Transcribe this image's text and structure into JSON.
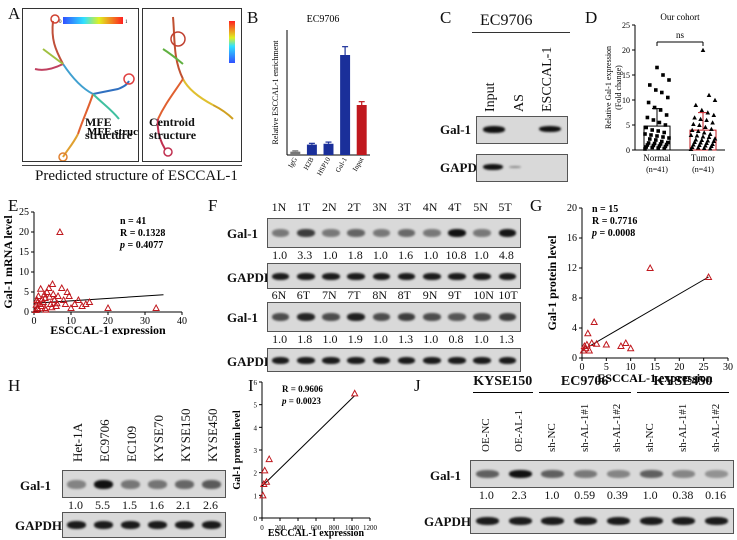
{
  "panels": {
    "A": {
      "label": "A",
      "mfe": "MFE structure",
      "centroid": "Centroid structure",
      "caption": "Predicted structure of ESCCAL-1",
      "scale_lo": "0",
      "scale_hi": "1"
    },
    "B": {
      "label": "B",
      "title": "EC9706",
      "ylabel": "Relative ESCCAL-1 enrichment"
    },
    "C": {
      "label": "C",
      "title": "EC9706",
      "lanes": [
        "Input",
        "AS",
        "ESCCAL-1"
      ],
      "rows": [
        "Gal-1",
        "GAPDH"
      ]
    },
    "D": {
      "label": "D",
      "title": "Our cohort",
      "ns": "ns",
      "ylabel": "Relative Gal-1 expression (Fold change)",
      "groups": [
        "Normal",
        "Tumor"
      ],
      "ns_counts": [
        "(n=41)",
        "(n=41)"
      ]
    },
    "E": {
      "label": "E",
      "ylabel": "Gal-1 mRNA level",
      "xlabel": "ESCCAL-1 expression",
      "stats": [
        "n = 41",
        "R = 0.1328",
        "p = 0.4077"
      ]
    },
    "F": {
      "label": "F",
      "lanes_top": [
        "1N",
        "1T",
        "2N",
        "2T",
        "3N",
        "3T",
        "4N",
        "4T",
        "5N",
        "5T"
      ],
      "vals_top": [
        "1.0",
        "3.3",
        "1.0",
        "1.8",
        "1.0",
        "1.6",
        "1.0",
        "10.8",
        "1.0",
        "4.8"
      ],
      "lanes_bot": [
        "6N",
        "6T",
        "7N",
        "7T",
        "8N",
        "8T",
        "9N",
        "9T",
        "10N",
        "10T"
      ],
      "vals_bot": [
        "1.0",
        "1.8",
        "1.0",
        "1.9",
        "1.0",
        "1.3",
        "1.0",
        "0.8",
        "1.0",
        "1.3"
      ],
      "rows": [
        "Gal-1",
        "GAPDH"
      ]
    },
    "G": {
      "label": "G",
      "ylabel": "Gal-1 protein level",
      "xlabel": "ESCCAL-1 expression",
      "stats": [
        "n = 15",
        "R = 0.7716",
        "p = 0.0008"
      ]
    },
    "H": {
      "label": "H",
      "lanes": [
        "Het-1A",
        "EC9706",
        "EC109",
        "KYSE70",
        "KYSE150",
        "KYSE450"
      ],
      "vals": [
        "1.0",
        "5.5",
        "1.5",
        "1.6",
        "2.1",
        "2.6"
      ],
      "rows": [
        "Gal-1",
        "GAPDH"
      ]
    },
    "I": {
      "label": "I",
      "ylabel": "Gal-1 protein level",
      "xlabel": "ESCCAL-1 expression",
      "stats": [
        "R = 0.9606",
        "p = 0.0023"
      ]
    },
    "J": {
      "label": "J",
      "groups": [
        "KYSE150",
        "EC9706",
        "KYSE450"
      ],
      "lanes": [
        "OE-NC",
        "OE-AL-1",
        "sh-NC",
        "sh-AL-1#1",
        "sh-AL-1#2",
        "sh-NC",
        "sh-AL-1#1",
        "sh-AL-1#2"
      ],
      "vals": [
        "1.0",
        "2.3",
        "1.0",
        "0.59",
        "0.39",
        "1.0",
        "0.38",
        "0.16"
      ],
      "rows": [
        "Gal-1",
        "GAPDH"
      ]
    }
  },
  "chart_data": [
    {
      "type": "bar",
      "panel": "B",
      "title": "EC9706",
      "ylabel": "Relative ESCCAL-1 enrichment",
      "categories": [
        "IgG",
        "H2B",
        "HSP10",
        "Gal-1",
        "Input"
      ],
      "values": [
        0.8,
        2.5,
        2.7,
        24,
        12
      ],
      "errors": [
        0.2,
        0.3,
        0.4,
        2,
        0.8
      ],
      "colors": [
        "#777777",
        "#1a2f9a",
        "#1a2f9a",
        "#1a2f9a",
        "#c0181e"
      ],
      "ylim": [
        0,
        30
      ]
    },
    {
      "type": "scatter",
      "panel": "D",
      "title": "Our cohort",
      "ylabel": "Relative Gal-1 expression (Fold change)",
      "categories": [
        "Normal",
        "Tumor"
      ],
      "ylim": [
        0,
        25
      ],
      "yticks": [
        0,
        5,
        10,
        15,
        20,
        25
      ],
      "series": [
        {
          "name": "Normal",
          "values": [
            0.2,
            0.3,
            0.4,
            0.5,
            0.6,
            0.8,
            1.0,
            1.1,
            1.2,
            1.4,
            1.5,
            1.7,
            2.0,
            2.2,
            2.4,
            2.6,
            3.0,
            3.2,
            3.5,
            3.8,
            4.0,
            4.5,
            5.0,
            5.5,
            6.0,
            6.5,
            7.0,
            8.0,
            8.5,
            9.5,
            10.5,
            11.5,
            12.0,
            13.0,
            14.0,
            15.0,
            16.5,
            0.9,
            1.3,
            0.7,
            2.8
          ]
        },
        {
          "name": "Tumor",
          "values": [
            0.2,
            0.4,
            0.5,
            0.6,
            0.8,
            1.0,
            1.2,
            1.4,
            1.6,
            1.8,
            2.0,
            2.3,
            2.6,
            2.9,
            3.2,
            3.5,
            3.8,
            4.2,
            4.6,
            5.0,
            5.5,
            6.0,
            6.5,
            7.0,
            7.5,
            8.0,
            9.0,
            10.0,
            11.0,
            0.3,
            0.9,
            1.5,
            2.1,
            3.0,
            4.0,
            5.2,
            6.2,
            1.1,
            1.9,
            2.7,
            20.0
          ]
        }
      ]
    },
    {
      "type": "scatter",
      "panel": "E",
      "xlabel": "ESCCAL-1 expression",
      "ylabel": "Gal-1 mRNA level",
      "xlim": [
        0,
        40
      ],
      "ylim": [
        0,
        25
      ],
      "xticks": [
        0,
        10,
        20,
        30,
        40
      ],
      "yticks": [
        0,
        5,
        10,
        15,
        20,
        25
      ],
      "points": [
        [
          0.5,
          0.5
        ],
        [
          1,
          1
        ],
        [
          1.5,
          2
        ],
        [
          2,
          1.5
        ],
        [
          0.8,
          3
        ],
        [
          1.2,
          4
        ],
        [
          2.5,
          2.5
        ],
        [
          3,
          1
        ],
        [
          3,
          3.5
        ],
        [
          3.5,
          5
        ],
        [
          4,
          6
        ],
        [
          4.5,
          2
        ],
        [
          5,
          7
        ],
        [
          5.5,
          3
        ],
        [
          6,
          1.5
        ],
        [
          6.5,
          4
        ],
        [
          7,
          20
        ],
        [
          7.5,
          6
        ],
        [
          8,
          3
        ],
        [
          8.5,
          2
        ],
        [
          9,
          5
        ],
        [
          9.5,
          4
        ],
        [
          10,
          1
        ],
        [
          11,
          2
        ],
        [
          12,
          3
        ],
        [
          13,
          1.5
        ],
        [
          14,
          2
        ],
        [
          15,
          2.5
        ],
        [
          20,
          1
        ],
        [
          1,
          0.8
        ],
        [
          0.6,
          1.8
        ],
        [
          2.2,
          3.2
        ],
        [
          3.2,
          0.6
        ],
        [
          4.2,
          3.8
        ],
        [
          5.2,
          4.5
        ],
        [
          6.2,
          2.2
        ],
        [
          1.8,
          5.8
        ],
        [
          2.8,
          4.4
        ],
        [
          33,
          1
        ],
        [
          4.8,
          1.2
        ],
        [
          0.9,
          2.4
        ]
      ],
      "fit": [
        [
          0,
          2.2
        ],
        [
          35,
          4.3
        ]
      ]
    },
    {
      "type": "scatter",
      "panel": "G",
      "xlabel": "ESCCAL-1 expression",
      "ylabel": "Gal-1 protein level",
      "xlim": [
        0,
        30
      ],
      "ylim": [
        0,
        20
      ],
      "xticks": [
        0,
        5,
        10,
        15,
        20,
        25,
        30
      ],
      "yticks": [
        0,
        4,
        8,
        12,
        16,
        20
      ],
      "points": [
        [
          0.3,
          1.0
        ],
        [
          0.5,
          1.6
        ],
        [
          0.8,
          1.3
        ],
        [
          1.0,
          1.8
        ],
        [
          1.2,
          3.3
        ],
        [
          1.5,
          1.0
        ],
        [
          2,
          2.0
        ],
        [
          2.5,
          4.8
        ],
        [
          3,
          1.9
        ],
        [
          5,
          1.8
        ],
        [
          8,
          1.6
        ],
        [
          9,
          2.0
        ],
        [
          10,
          1.3
        ],
        [
          14,
          12.0
        ],
        [
          26,
          10.8
        ]
      ],
      "fit": [
        [
          0,
          1.0
        ],
        [
          26,
          10.8
        ]
      ]
    },
    {
      "type": "scatter",
      "panel": "I",
      "xlabel": "ESCCAL-1 expression",
      "ylabel": "Gal-1 protein level",
      "xlim": [
        0,
        1200
      ],
      "ylim": [
        0,
        6
      ],
      "xticks": [
        0,
        200,
        400,
        600,
        800,
        1000,
        1200
      ],
      "yticks": [
        0,
        1,
        2,
        3,
        4,
        5,
        6
      ],
      "points": [
        [
          10,
          1.0
        ],
        [
          20,
          1.5
        ],
        [
          50,
          1.6
        ],
        [
          80,
          2.6
        ],
        [
          30,
          2.1
        ],
        [
          1030,
          5.5
        ]
      ],
      "fit": [
        [
          0,
          1.4
        ],
        [
          1030,
          5.4
        ]
      ]
    }
  ]
}
